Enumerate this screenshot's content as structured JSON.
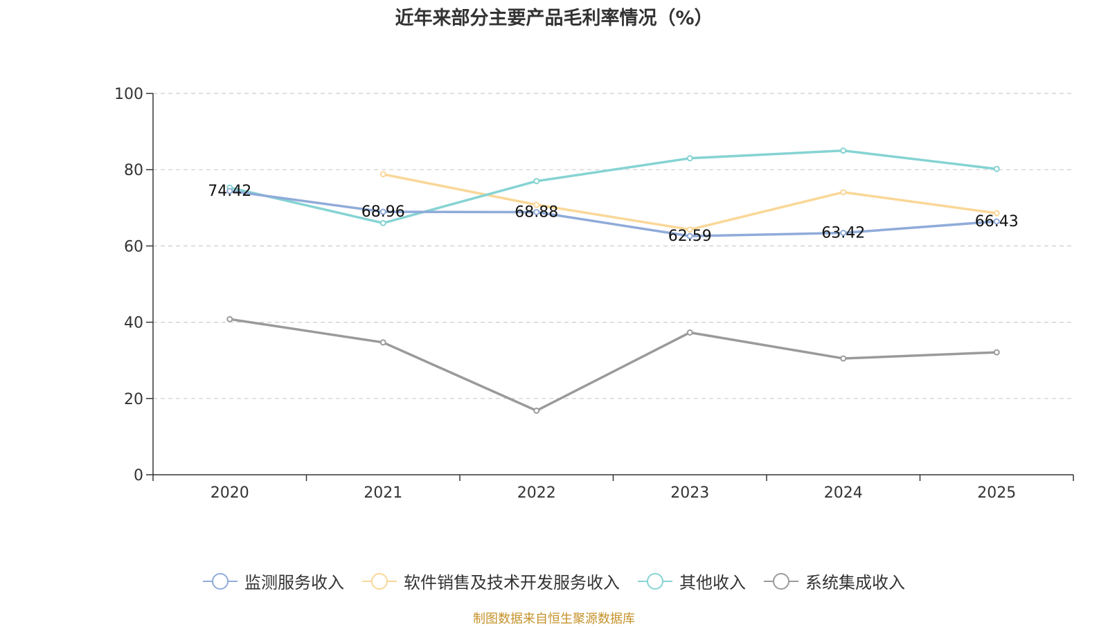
{
  "chart_data": {
    "type": "line",
    "title": "近年来部分主要产品毛利率情况（%）",
    "categories": [
      "2020",
      "2021",
      "2022",
      "2023",
      "2024",
      "2025"
    ],
    "ylim": [
      0,
      100
    ],
    "yticks": [
      0,
      20,
      40,
      60,
      80,
      100
    ],
    "grid": true,
    "legend_position": "bottom",
    "series": [
      {
        "name": "监测服务收入",
        "color": "#8fabd9",
        "values": [
          74.42,
          68.96,
          68.88,
          62.59,
          63.42,
          66.43
        ],
        "labeled": true
      },
      {
        "name": "软件销售及技术开发服务收入",
        "color": "#fad797",
        "values": [
          null,
          78.8,
          70.8,
          64.3,
          74.1,
          68.6
        ],
        "labeled": false
      },
      {
        "name": "其他收入",
        "color": "#86d3d3",
        "values": [
          75.3,
          66.0,
          77.0,
          83.0,
          85.0,
          80.2
        ],
        "labeled": false
      },
      {
        "name": "系统集成收入",
        "color": "#9a9a9a",
        "values": [
          40.8,
          34.7,
          16.8,
          37.3,
          30.5,
          32.1
        ],
        "labeled": false
      }
    ],
    "data_labels": [
      "74.42",
      "68.96",
      "68.88",
      "62.59",
      "63.42",
      "66.43"
    ]
  },
  "source_note": "制图数据来自恒生聚源数据库"
}
